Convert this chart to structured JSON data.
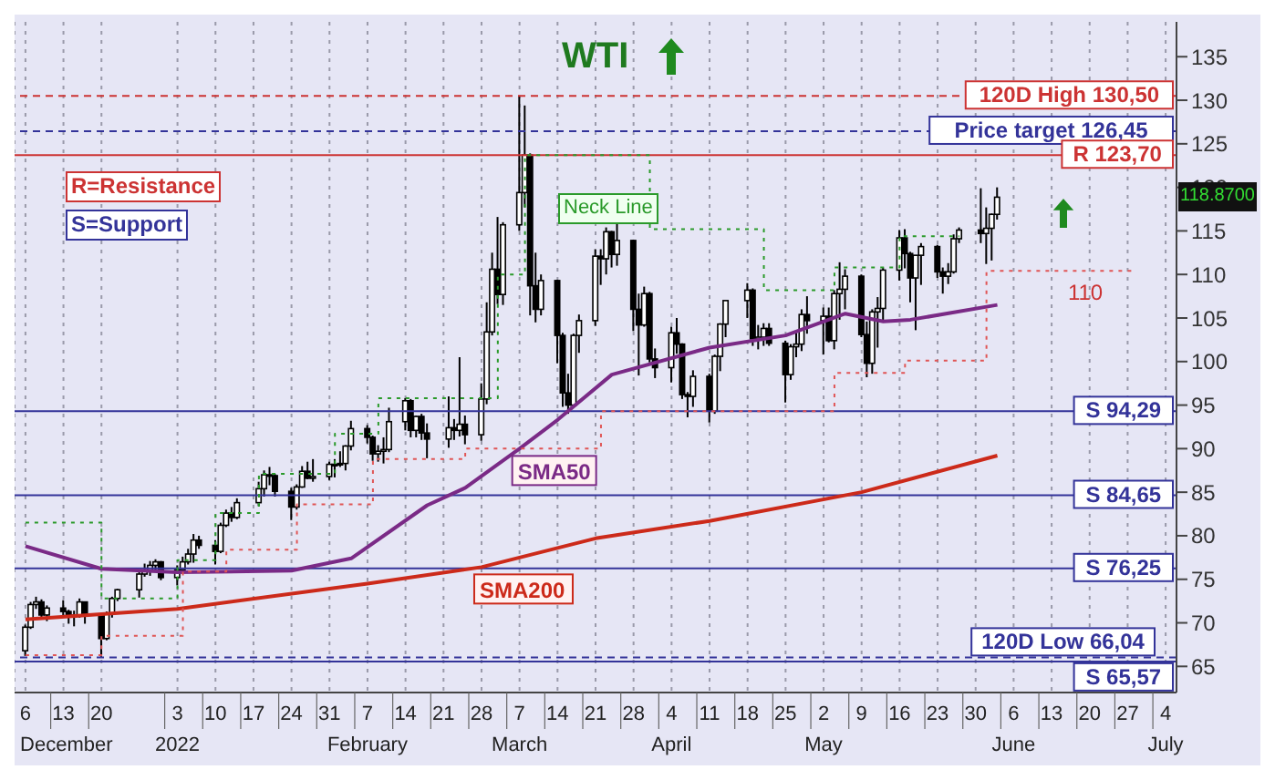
{
  "chart_data": {
    "type": "candlestick",
    "title": "WTI",
    "grid": "x",
    "color": "#000000",
    "xlim": [
      "2021-12-04",
      "2022-07-06"
    ],
    "ylim": [
      62,
      139
    ],
    "yticks": [
      65,
      70,
      75,
      80,
      85,
      90,
      95,
      100,
      105,
      110,
      115,
      120,
      125,
      130,
      135
    ],
    "xticks": [
      {
        "value": "2021-12-06",
        "label": "6\nDecember"
      },
      {
        "value": "2021-12-13",
        "label": "13"
      },
      {
        "value": "2021-12-20",
        "label": "20"
      },
      {
        "value": "2022-01-03",
        "label": "3\n2022"
      },
      {
        "value": "2022-01-10",
        "label": "10"
      },
      {
        "value": "2022-01-17",
        "label": "17"
      },
      {
        "value": "2022-01-24",
        "label": "24"
      },
      {
        "value": "2022-01-31",
        "label": "31"
      },
      {
        "value": "2022-02-07",
        "label": "7\nFebruary"
      },
      {
        "value": "2022-02-14",
        "label": "14"
      },
      {
        "value": "2022-02-21",
        "label": "21"
      },
      {
        "value": "2022-02-28",
        "label": "28"
      },
      {
        "value": "2022-03-07",
        "label": "7\nMarch"
      },
      {
        "value": "2022-03-14",
        "label": "14"
      },
      {
        "value": "2022-03-21",
        "label": "21"
      },
      {
        "value": "2022-03-28",
        "label": "28"
      },
      {
        "value": "2022-04-04",
        "label": "4\nApril"
      },
      {
        "value": "2022-04-11",
        "label": "11"
      },
      {
        "value": "2022-04-18",
        "label": "18"
      },
      {
        "value": "2022-04-25",
        "label": "25"
      },
      {
        "value": "2022-05-02",
        "label": "2\nMay"
      },
      {
        "value": "2022-05-09",
        "label": "9"
      },
      {
        "value": "2022-05-16",
        "label": "16"
      },
      {
        "value": "2022-05-23",
        "label": "23"
      },
      {
        "value": "2022-05-30",
        "label": "30"
      },
      {
        "value": "2022-06-06",
        "label": "6\nJune"
      },
      {
        "value": "2022-06-13",
        "label": "13"
      },
      {
        "value": "2022-06-20",
        "label": "20"
      },
      {
        "value": "2022-06-27",
        "label": "27"
      },
      {
        "value": "2022-07-04",
        "label": "4\nJuly"
      }
    ],
    "x": [
      "2021-12-06",
      "2021-12-07",
      "2021-12-08",
      "2021-12-09",
      "2021-12-10",
      "2021-12-13",
      "2021-12-14",
      "2021-12-15",
      "2021-12-16",
      "2021-12-17",
      "2021-12-20",
      "2021-12-21",
      "2021-12-22",
      "2021-12-23",
      "2021-12-27",
      "2021-12-28",
      "2021-12-29",
      "2021-12-30",
      "2021-12-31",
      "2022-01-03",
      "2022-01-04",
      "2022-01-05",
      "2022-01-06",
      "2022-01-07",
      "2022-01-10",
      "2022-01-11",
      "2022-01-12",
      "2022-01-13",
      "2022-01-14",
      "2022-01-18",
      "2022-01-19",
      "2022-01-20",
      "2022-01-21",
      "2022-01-24",
      "2022-01-25",
      "2022-01-26",
      "2022-01-27",
      "2022-01-28",
      "2022-01-31",
      "2022-02-01",
      "2022-02-02",
      "2022-02-03",
      "2022-02-04",
      "2022-02-07",
      "2022-02-08",
      "2022-02-09",
      "2022-02-10",
      "2022-02-11",
      "2022-02-14",
      "2022-02-15",
      "2022-02-16",
      "2022-02-17",
      "2022-02-18",
      "2022-02-22",
      "2022-02-23",
      "2022-02-24",
      "2022-02-25",
      "2022-02-28",
      "2022-03-01",
      "2022-03-02",
      "2022-03-03",
      "2022-03-04",
      "2022-03-07",
      "2022-03-08",
      "2022-03-09",
      "2022-03-10",
      "2022-03-11",
      "2022-03-14",
      "2022-03-15",
      "2022-03-16",
      "2022-03-17",
      "2022-03-18",
      "2022-03-21",
      "2022-03-22",
      "2022-03-23",
      "2022-03-24",
      "2022-03-25",
      "2022-03-28",
      "2022-03-29",
      "2022-03-30",
      "2022-03-31",
      "2022-04-01",
      "2022-04-04",
      "2022-04-05",
      "2022-04-06",
      "2022-04-07",
      "2022-04-08",
      "2022-04-11",
      "2022-04-12",
      "2022-04-13",
      "2022-04-14",
      "2022-04-18",
      "2022-04-19",
      "2022-04-20",
      "2022-04-21",
      "2022-04-22",
      "2022-04-25",
      "2022-04-26",
      "2022-04-27",
      "2022-04-28",
      "2022-04-29",
      "2022-05-02",
      "2022-05-03",
      "2022-05-04",
      "2022-05-05",
      "2022-05-06",
      "2022-05-09",
      "2022-05-10",
      "2022-05-11",
      "2022-05-12",
      "2022-05-13",
      "2022-05-16",
      "2022-05-17",
      "2022-05-18",
      "2022-05-19",
      "2022-05-20",
      "2022-05-23",
      "2022-05-24",
      "2022-05-25",
      "2022-05-26",
      "2022-05-27",
      "2022-05-31",
      "2022-06-01",
      "2022-06-02",
      "2022-06-03"
    ],
    "ohlc": [
      [
        66.8,
        69.8,
        66.2,
        69.5
      ],
      [
        69.5,
        72.4,
        69.3,
        72.1
      ],
      [
        72.1,
        73.0,
        71.6,
        72.4
      ],
      [
        72.4,
        72.7,
        70.4,
        70.9
      ],
      [
        70.9,
        72.0,
        70.2,
        71.7
      ],
      [
        71.7,
        72.6,
        70.9,
        71.3
      ],
      [
        71.3,
        71.5,
        69.9,
        70.7
      ],
      [
        70.7,
        71.4,
        69.6,
        70.9
      ],
      [
        70.9,
        72.8,
        70.6,
        72.4
      ],
      [
        72.4,
        72.4,
        69.9,
        70.9
      ],
      [
        70.9,
        70.9,
        66.1,
        68.2
      ],
      [
        68.2,
        71.3,
        68.0,
        71.1
      ],
      [
        71.1,
        73.0,
        70.6,
        72.8
      ],
      [
        72.8,
        73.9,
        72.5,
        73.8
      ],
      [
        73.8,
        75.8,
        72.9,
        75.6
      ],
      [
        75.6,
        76.8,
        75.3,
        76.0
      ],
      [
        76.0,
        77.1,
        75.4,
        76.6
      ],
      [
        76.6,
        77.3,
        75.9,
        77.0
      ],
      [
        77.0,
        77.1,
        74.9,
        75.2
      ],
      [
        75.2,
        76.6,
        74.3,
        76.1
      ],
      [
        76.1,
        77.6,
        75.7,
        77.0
      ],
      [
        77.0,
        78.5,
        76.7,
        77.9
      ],
      [
        77.9,
        80.2,
        76.9,
        79.5
      ],
      [
        79.5,
        80.0,
        78.5,
        78.9
      ],
      [
        78.9,
        79.5,
        76.7,
        78.2
      ],
      [
        78.2,
        81.5,
        78.0,
        81.2
      ],
      [
        81.2,
        83.0,
        81.0,
        82.6
      ],
      [
        82.6,
        83.3,
        81.6,
        82.1
      ],
      [
        82.1,
        84.3,
        81.9,
        83.8
      ],
      [
        83.8,
        86.2,
        83.4,
        85.4
      ],
      [
        85.4,
        87.5,
        84.5,
        87.0
      ],
      [
        87.0,
        87.9,
        85.8,
        86.9
      ],
      [
        86.9,
        87.1,
        84.5,
        85.1
      ],
      [
        85.1,
        85.5,
        81.8,
        83.3
      ],
      [
        83.3,
        85.9,
        83.0,
        85.6
      ],
      [
        85.6,
        88.0,
        85.5,
        87.4
      ],
      [
        87.4,
        88.5,
        86.5,
        86.6
      ],
      [
        86.6,
        88.8,
        86.2,
        86.8
      ],
      [
        86.8,
        88.5,
        86.4,
        88.2
      ],
      [
        88.2,
        88.8,
        86.7,
        88.2
      ],
      [
        88.2,
        89.7,
        87.9,
        88.3
      ],
      [
        88.3,
        90.4,
        87.5,
        90.3
      ],
      [
        90.3,
        93.2,
        89.8,
        92.3
      ],
      [
        92.3,
        92.7,
        90.6,
        91.3
      ],
      [
        91.3,
        91.5,
        88.6,
        89.4
      ],
      [
        89.4,
        90.4,
        88.5,
        89.7
      ],
      [
        89.7,
        91.3,
        88.3,
        89.9
      ],
      [
        89.9,
        94.7,
        89.6,
        93.1
      ],
      [
        93.1,
        95.8,
        92.1,
        95.5
      ],
      [
        95.5,
        95.7,
        91.3,
        92.1
      ],
      [
        92.1,
        93.8,
        91.3,
        93.7
      ],
      [
        93.7,
        94.0,
        91.0,
        91.8
      ],
      [
        91.8,
        92.9,
        88.9,
        91.1
      ],
      [
        91.1,
        96.0,
        90.1,
        92.4
      ],
      [
        92.4,
        93.4,
        91.0,
        92.1
      ],
      [
        92.1,
        100.5,
        91.4,
        92.8
      ],
      [
        92.8,
        93.8,
        90.5,
        91.6
      ],
      [
        91.6,
        97.5,
        90.9,
        95.7
      ],
      [
        95.7,
        106.8,
        95.1,
        103.4
      ],
      [
        103.4,
        112.5,
        103.0,
        110.6
      ],
      [
        110.6,
        116.6,
        106.6,
        107.7
      ],
      [
        107.7,
        116.0,
        106.5,
        115.7
      ],
      [
        115.7,
        130.5,
        115.0,
        119.4
      ],
      [
        119.4,
        129.4,
        117.7,
        123.7
      ],
      [
        123.7,
        123.9,
        105.3,
        108.7
      ],
      [
        108.7,
        112.5,
        104.5,
        106.0
      ],
      [
        106.0,
        110.0,
        105.3,
        109.3
      ],
      [
        109.3,
        109.4,
        99.8,
        103.0
      ],
      [
        103.0,
        103.3,
        94.8,
        96.4
      ],
      [
        96.4,
        98.6,
        94.0,
        95.0
      ],
      [
        95.0,
        103.2,
        94.8,
        103.0
      ],
      [
        103.0,
        105.4,
        101.0,
        104.7
      ],
      [
        104.7,
        112.9,
        104.1,
        112.1
      ],
      [
        112.1,
        112.9,
        108.8,
        111.8
      ],
      [
        111.8,
        115.4,
        110.0,
        114.9
      ],
      [
        114.9,
        115.0,
        110.8,
        112.3
      ],
      [
        112.3,
        115.8,
        111.0,
        113.9
      ],
      [
        113.9,
        114.0,
        103.5,
        106.0
      ],
      [
        106.0,
        107.8,
        98.4,
        104.2
      ],
      [
        104.2,
        108.6,
        104.0,
        107.8
      ],
      [
        107.8,
        108.0,
        99.9,
        100.3
      ],
      [
        100.3,
        101.5,
        98.1,
        99.3
      ],
      [
        99.3,
        104.0,
        97.6,
        103.3
      ],
      [
        103.3,
        105.0,
        100.9,
        102.0
      ],
      [
        102.0,
        102.1,
        95.7,
        96.2
      ],
      [
        96.2,
        96.5,
        93.6,
        96.0
      ],
      [
        96.0,
        99.0,
        94.8,
        98.3
      ],
      [
        98.3,
        98.6,
        93.0,
        94.3
      ],
      [
        94.3,
        100.8,
        94.0,
        100.6
      ],
      [
        100.6,
        104.4,
        98.9,
        104.3
      ],
      [
        104.3,
        107.0,
        102.8,
        107.0
      ],
      [
        107.0,
        109.0,
        105.0,
        108.2
      ],
      [
        108.2,
        108.4,
        101.8,
        102.6
      ],
      [
        102.6,
        104.2,
        101.4,
        102.8
      ],
      [
        102.8,
        104.4,
        101.8,
        103.8
      ],
      [
        103.8,
        104.4,
        101.8,
        102.1
      ],
      [
        102.1,
        102.4,
        95.3,
        98.5
      ],
      [
        98.5,
        102.0,
        97.9,
        101.7
      ],
      [
        101.7,
        103.3,
        100.5,
        102.0
      ],
      [
        102.0,
        106.0,
        101.2,
        105.4
      ],
      [
        105.4,
        107.5,
        103.2,
        104.7
      ],
      [
        104.7,
        106.2,
        100.8,
        105.2
      ],
      [
        105.2,
        106.2,
        102.2,
        102.4
      ],
      [
        102.4,
        108.2,
        101.4,
        107.8
      ],
      [
        107.8,
        111.4,
        104.8,
        108.3
      ],
      [
        108.3,
        110.6,
        106.0,
        109.8
      ],
      [
        109.8,
        110.0,
        102.8,
        103.1
      ],
      [
        103.1,
        104.6,
        98.2,
        99.8
      ],
      [
        99.8,
        106.0,
        98.6,
        105.7
      ],
      [
        105.7,
        107.4,
        101.6,
        106.1
      ],
      [
        106.1,
        110.8,
        104.6,
        110.5
      ],
      [
        110.5,
        115.1,
        109.3,
        114.2
      ],
      [
        114.2,
        115.2,
        110.7,
        112.4
      ],
      [
        112.4,
        112.6,
        106.8,
        109.6
      ],
      [
        109.6,
        112.2,
        103.6,
        112.2
      ],
      [
        112.2,
        113.6,
        108.8,
        113.2
      ],
      [
        113.2,
        113.4,
        109.6,
        110.3
      ],
      [
        110.3,
        110.8,
        107.8,
        109.8
      ],
      [
        109.8,
        111.3,
        108.9,
        110.3
      ],
      [
        110.3,
        114.6,
        110.1,
        114.1
      ],
      [
        114.1,
        115.4,
        113.6,
        115.1
      ],
      [
        115.1,
        119.9,
        113.6,
        114.7
      ],
      [
        114.7,
        117.7,
        111.2,
        115.3
      ],
      [
        115.3,
        117.0,
        111.6,
        116.9
      ],
      [
        116.9,
        120.0,
        116.3,
        118.87
      ]
    ],
    "series": [
      {
        "type": "line",
        "name": "SMA50",
        "color": "#7a2a86",
        "x": [
          "2021-12-06",
          "2021-12-20",
          "2022-01-03",
          "2022-01-24",
          "2022-02-04",
          "2022-02-18",
          "2022-02-25",
          "2022-03-07",
          "2022-03-14",
          "2022-03-24",
          "2022-04-11",
          "2022-04-25",
          "2022-05-06",
          "2022-05-13",
          "2022-05-18",
          "2022-06-03"
        ],
        "values": [
          78.8,
          76.2,
          75.8,
          76.0,
          77.4,
          83.5,
          85.5,
          90.0,
          93.3,
          98.5,
          101.6,
          103.0,
          105.5,
          104.6,
          104.8,
          106.5
        ]
      },
      {
        "type": "line",
        "name": "SMA200",
        "color": "#cc2a1a",
        "x": [
          "2021-12-06",
          "2022-01-03",
          "2022-02-07",
          "2022-02-28",
          "2022-03-21",
          "2022-04-11",
          "2022-05-09",
          "2022-06-03"
        ],
        "values": [
          70.4,
          71.6,
          74.5,
          76.4,
          79.7,
          81.7,
          85.0,
          89.2
        ]
      },
      {
        "type": "step",
        "color": "#2a9a2a",
        "line_style": "dotted",
        "x": [
          "2021-12-06",
          "2021-12-20",
          "2022-01-03",
          "2022-01-10",
          "2022-01-18",
          "2022-02-01",
          "2022-02-09",
          "2022-03-01",
          "2022-03-03",
          "2022-03-08",
          "2022-03-31",
          "2022-04-21",
          "2022-05-04",
          "2022-05-16",
          "2022-05-27"
        ],
        "values": [
          81.5,
          72.8,
          77.2,
          82.6,
          87.1,
          91.7,
          95.8,
          95.8,
          110.0,
          123.7,
          115.2,
          108.2,
          110.8,
          114.4,
          114.4
        ]
      },
      {
        "type": "step",
        "color": "#e05555",
        "line_style": "dotted",
        "x": [
          "2021-12-06",
          "2021-12-20",
          "2022-01-04",
          "2022-01-12",
          "2022-01-25",
          "2022-02-08",
          "2022-02-25",
          "2022-03-22",
          "2022-05-04",
          "2022-05-17",
          "2022-06-01",
          "2022-06-28"
        ],
        "values": [
          66.3,
          68.5,
          75.9,
          78.4,
          83.6,
          88.8,
          90.0,
          94.3,
          98.7,
          100.1,
          110.4,
          110.4
        ]
      }
    ],
    "ref_lines": [
      {
        "axis": "y",
        "value": 130.5,
        "label": "120D High 130,50",
        "color": "#cc3333",
        "line_style": "dashed"
      },
      {
        "axis": "y",
        "value": 126.45,
        "label": "Price target 126,45",
        "color": "#333399",
        "line_style": "dashed"
      },
      {
        "axis": "y",
        "value": 123.7,
        "label": "R 123,70",
        "color": "#cc3333",
        "line_style": "solid"
      },
      {
        "axis": "y",
        "value": 94.29,
        "label": "S 94,29",
        "color": "#333399",
        "line_style": "solid"
      },
      {
        "axis": "y",
        "value": 84.65,
        "label": "S 84,65",
        "color": "#333399",
        "line_style": "solid"
      },
      {
        "axis": "y",
        "value": 76.25,
        "label": "S 76,25",
        "color": "#333399",
        "line_style": "solid"
      },
      {
        "axis": "y",
        "value": 66.04,
        "label": "120D Low 66,04",
        "color": "#333399",
        "line_style": "dashed"
      },
      {
        "axis": "y",
        "value": 65.57,
        "label": "S 65,57",
        "color": "#333399",
        "line_style": "solid"
      }
    ],
    "annotations": [
      "R=Resistance",
      "S=Support",
      "Neck Line",
      {
        "text": "110",
        "x": "2022-06-16",
        "y": 110.4
      },
      {
        "text": "118.8700",
        "y": 118.87
      }
    ]
  }
}
